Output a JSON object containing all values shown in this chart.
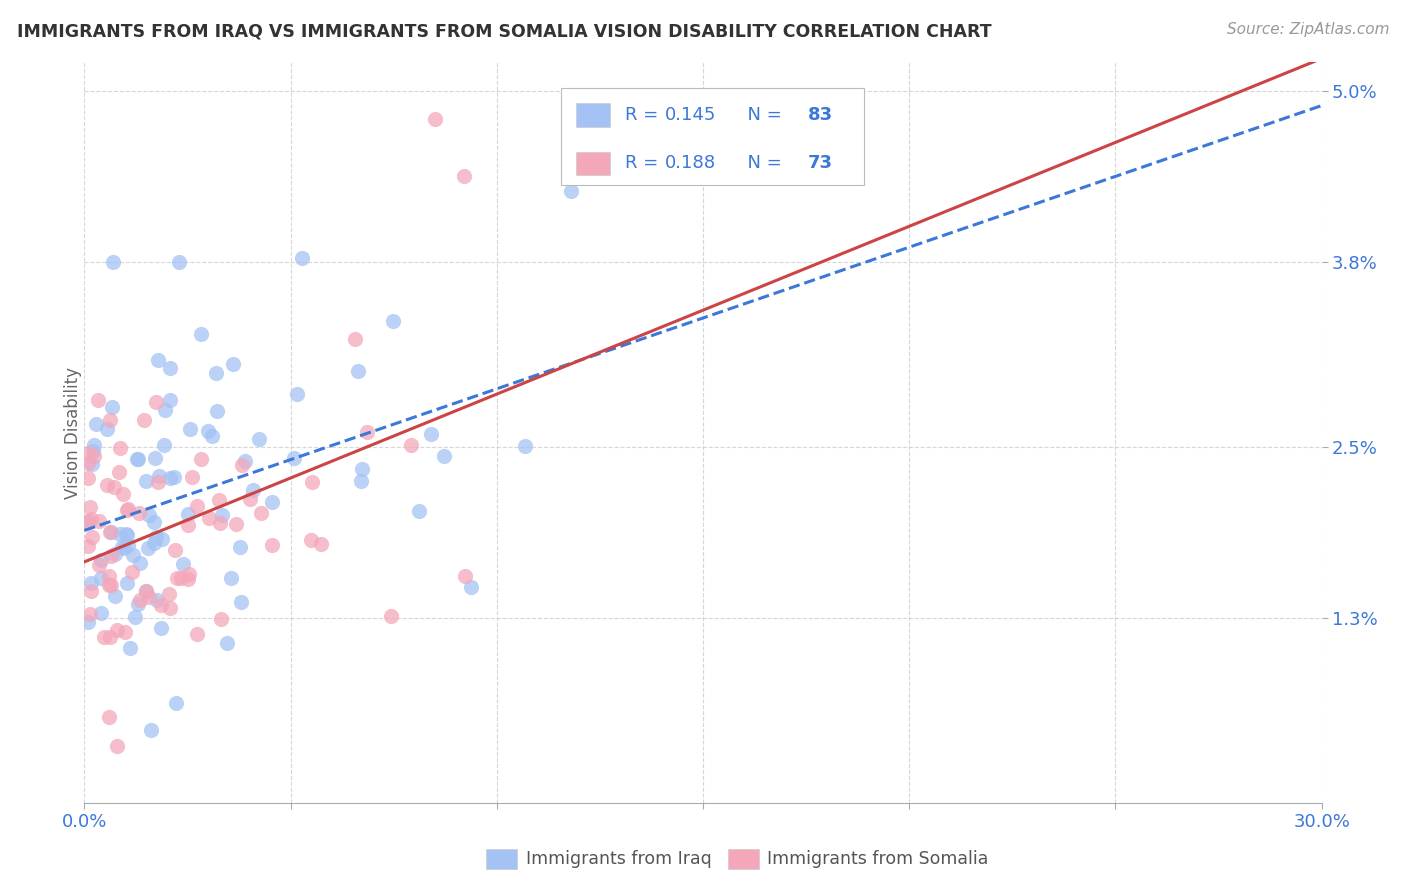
{
  "title": "IMMIGRANTS FROM IRAQ VS IMMIGRANTS FROM SOMALIA VISION DISABILITY CORRELATION CHART",
  "source": "Source: ZipAtlas.com",
  "ylabel": "Vision Disability",
  "xlim": [
    0.0,
    0.3
  ],
  "ylim": [
    0.0,
    0.052
  ],
  "xticks": [
    0.0,
    0.05,
    0.1,
    0.15,
    0.2,
    0.25,
    0.3
  ],
  "xticklabels": [
    "0.0%",
    "",
    "",
    "",
    "",
    "",
    "30.0%"
  ],
  "yticks": [
    0.013,
    0.025,
    0.038,
    0.05
  ],
  "yticklabels": [
    "1.3%",
    "2.5%",
    "3.8%",
    "5.0%"
  ],
  "iraq_color": "#a4c2f4",
  "somalia_color": "#f4a7b9",
  "iraq_line_color": "#3c78d8",
  "somalia_line_color": "#cc4444",
  "R_iraq": 0.145,
  "N_iraq": 83,
  "R_somalia": 0.188,
  "N_somalia": 73,
  "iraq_label": "Immigrants from Iraq",
  "somalia_label": "Immigrants from Somalia",
  "background_color": "#ffffff",
  "grid_color": "#cccccc",
  "title_color": "#333333",
  "axis_label_color": "#3c78d8",
  "legend_text_color": "#3c78d8",
  "legend_edge_color": "#bbbbbb"
}
